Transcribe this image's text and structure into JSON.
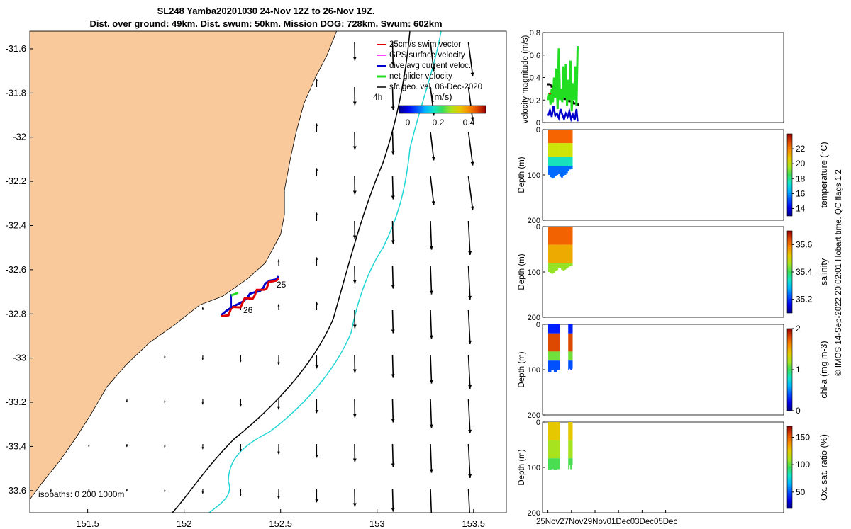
{
  "title": {
    "line1": "SL248 Yamba20201030 24-Nov 12Z to 26-Nov 19Z.",
    "line2": "Dist. over ground: 49km. Dist. swum: 50km. Mission DOG: 728km. Swum: 602km"
  },
  "colors": {
    "land": "#f9c99b",
    "contour_200": "#000000",
    "contour_1000": "#22d6d6",
    "swim_vector": "#e00000",
    "gps_velocity": "#ff00ff",
    "dive_avg": "#0000cc",
    "net_velocity": "#22dd22",
    "geo_vel": "#000000"
  },
  "map": {
    "legend": [
      {
        "key": "swim",
        "label": "25cm/s swim vector"
      },
      {
        "key": "gps",
        "label": "GPS surface velocity"
      },
      {
        "key": "dive",
        "label": "dive avg current veloc."
      },
      {
        "key": "net",
        "label": "net glider velocity"
      },
      {
        "key": "geo",
        "label": "sfc geo. vel. 06-Dec-2020"
      }
    ],
    "scale_label": "4h",
    "colorbar_unit": "(m/s)",
    "colorbar_ticks": [
      "0",
      "0.2",
      "0.4"
    ],
    "colorbar_range": [
      0,
      0.5
    ],
    "isobaths_label": "isobaths: 0   200  1000m",
    "day_labels": [
      {
        "text": "25",
        "lon": 152.48,
        "lat": -32.7
      },
      {
        "text": "26",
        "lon": 152.28,
        "lat": -32.82
      }
    ]
  },
  "chart_data": [
    {
      "type": "scatter",
      "name": "map",
      "x_ticks": [
        151.5,
        152,
        152.5,
        153,
        153.5
      ],
      "x_tick_labels": [
        "151.5",
        "152",
        "152.5",
        "153",
        "153.5"
      ],
      "y_ticks": [
        -31.6,
        -31.8,
        -32,
        -32.2,
        -32.4,
        -32.6,
        -32.8,
        -33,
        -33.2,
        -33.4,
        -33.6
      ],
      "y_tick_labels": [
        "-31.6",
        "-31.8",
        "-32",
        "-32.2",
        "-32.4",
        "-32.6",
        "-32.8",
        "-33",
        "-33.2",
        "-33.4",
        "-33.6"
      ],
      "xlim": [
        151.2,
        153.67
      ],
      "ylim": [
        -33.7,
        -31.52
      ],
      "glider_track": {
        "start": [
          152.49,
          -32.63
        ],
        "end": [
          152.2,
          -32.8
        ]
      },
      "coast": [
        [
          151.2,
          -33.64
        ],
        [
          151.26,
          -33.57
        ],
        [
          151.36,
          -33.46
        ],
        [
          151.44,
          -33.36
        ],
        [
          151.52,
          -33.25
        ],
        [
          151.6,
          -33.13
        ],
        [
          151.7,
          -33.03
        ],
        [
          151.82,
          -32.93
        ],
        [
          151.95,
          -32.85
        ],
        [
          152.08,
          -32.76
        ],
        [
          152.2,
          -32.72
        ],
        [
          152.33,
          -32.64
        ],
        [
          152.42,
          -32.57
        ],
        [
          152.5,
          -32.44
        ],
        [
          152.52,
          -32.35
        ],
        [
          152.52,
          -32.24
        ],
        [
          152.55,
          -32.1
        ],
        [
          152.58,
          -31.98
        ],
        [
          152.62,
          -31.85
        ],
        [
          152.68,
          -31.73
        ],
        [
          152.74,
          -31.63
        ],
        [
          152.79,
          -31.52
        ]
      ]
    },
    {
      "type": "line",
      "name": "velocity",
      "ylabel": "velocity magnitude (m/s)",
      "ylim": [
        0,
        0.8
      ],
      "y_ticks": [
        0,
        0.2,
        0.4,
        0.6,
        0.8
      ],
      "y_tick_labels": [
        "0",
        "0.2",
        "0.4",
        "0.6",
        "0.8"
      ],
      "series": [
        {
          "key": "geo",
          "x": [
            0.0,
            0.1,
            0.2,
            0.3,
            0.4,
            0.5,
            0.6,
            0.7,
            0.8,
            0.9,
            1.0,
            1.1,
            1.2,
            1.3,
            1.4,
            1.5,
            1.6,
            1.7,
            1.8,
            1.9,
            2.0,
            2.1,
            2.2,
            2.3,
            2.4,
            2.5
          ],
          "values": [
            0.34,
            0.34,
            0.33,
            0.32,
            0.31,
            0.29,
            0.28,
            0.26,
            0.25,
            0.24,
            0.23,
            0.23,
            0.22,
            0.22,
            0.21,
            0.21,
            0.2,
            0.2,
            0.19,
            0.19,
            0.18,
            0.18,
            0.17,
            0.17,
            0.17,
            0.16
          ]
        },
        {
          "key": "dive",
          "x": [
            0.0,
            0.15,
            0.3,
            0.45,
            0.6,
            0.75,
            0.9,
            1.05,
            1.2,
            1.35,
            1.5,
            1.65,
            1.8,
            1.95,
            2.1,
            2.25,
            2.4,
            2.5
          ],
          "values": [
            0.06,
            0.11,
            0.05,
            0.15,
            0.06,
            0.08,
            0.04,
            0.12,
            0.07,
            0.03,
            0.08,
            0.05,
            0.1,
            0.03,
            0.07,
            0.02,
            0.12,
            0.01
          ]
        },
        {
          "key": "net",
          "x": [
            0.0,
            0.1,
            0.2,
            0.3,
            0.4,
            0.5,
            0.6,
            0.7,
            0.8,
            0.9,
            1.0,
            1.1,
            1.2,
            1.3,
            1.4,
            1.5,
            1.6,
            1.7,
            1.8,
            1.9,
            2.0,
            2.1,
            2.2,
            2.3,
            2.4,
            2.5
          ],
          "values": [
            0.2,
            0.26,
            0.16,
            0.3,
            0.18,
            0.4,
            0.22,
            0.48,
            0.12,
            0.66,
            0.2,
            0.3,
            0.18,
            0.5,
            0.22,
            0.52,
            0.15,
            0.38,
            0.2,
            0.55,
            0.1,
            0.35,
            0.2,
            0.5,
            0.15,
            0.68
          ]
        },
        {
          "key": "swim",
          "x": [
            0.1,
            0.2
          ],
          "values": [
            0.25,
            0.26
          ]
        }
      ]
    },
    {
      "type": "heatmap",
      "name": "temperature",
      "ylabel": "Depth (m)",
      "ylim": [
        200,
        0
      ],
      "y_ticks": [
        0,
        100,
        200
      ],
      "colorbar_label": "temperature (°C)",
      "range": [
        13,
        24
      ],
      "ticks": [
        14,
        16,
        18,
        20,
        22
      ],
      "tick_labels": [
        "14",
        "16",
        "18",
        "20",
        "22"
      ],
      "depth_max": [
        100,
        105,
        108,
        106,
        102,
        100,
        98,
        104,
        106,
        102,
        100,
        96,
        92,
        88,
        86
      ],
      "layers": [
        {
          "to": 30,
          "value": 22.5
        },
        {
          "to": 60,
          "value": 20
        },
        {
          "to": 80,
          "value": 17.5
        },
        {
          "to": 110,
          "value": 15.5
        }
      ]
    },
    {
      "type": "heatmap",
      "name": "salinity",
      "ylabel": "Depth (m)",
      "ylim": [
        200,
        0
      ],
      "y_ticks": [
        0,
        100,
        200
      ],
      "colorbar_label": "salinity",
      "range": [
        35.1,
        35.7
      ],
      "ticks": [
        35.2,
        35.4,
        35.6
      ],
      "tick_labels": [
        "35.2",
        "35.4",
        "35.6"
      ],
      "depth_max": [
        100,
        103,
        104,
        102,
        98,
        96,
        92,
        92,
        95,
        97,
        95,
        92,
        90,
        88,
        86
      ],
      "layers": [
        {
          "to": 40,
          "value": 35.62
        },
        {
          "to": 80,
          "value": 35.55
        },
        {
          "to": 110,
          "value": 35.45
        }
      ]
    },
    {
      "type": "heatmap",
      "name": "chl-a",
      "ylabel": "Depth (m)",
      "ylim": [
        200,
        0
      ],
      "y_ticks": [
        0,
        100,
        200
      ],
      "colorbar_label": "chl-a (mg m-3)",
      "range": [
        0,
        2
      ],
      "ticks": [
        0,
        1,
        2
      ],
      "tick_labels": [
        "0",
        "1",
        "2"
      ],
      "segments": [
        {
          "x0": 0.0,
          "x1": 0.95
        },
        {
          "x0": 1.7,
          "x1": 2.05
        }
      ],
      "depth_max": [
        105,
        100,
        98
      ],
      "layers": [
        {
          "to": 20,
          "value": 0.3
        },
        {
          "to": 60,
          "value": 1.8
        },
        {
          "to": 80,
          "value": 1.1
        },
        {
          "to": 110,
          "value": 0.4
        }
      ]
    },
    {
      "type": "heatmap",
      "name": "oxygen",
      "ylabel": "Depth (m)",
      "ylim": [
        200,
        0
      ],
      "y_ticks": [
        0,
        100,
        200
      ],
      "colorbar_label": "Ox. sat. ratio (%)",
      "range": [
        20,
        170
      ],
      "ticks": [
        50,
        100,
        150
      ],
      "tick_labels": [
        "50",
        "100",
        "150"
      ],
      "segments": [
        {
          "x0": 0.0,
          "x1": 0.95
        },
        {
          "x0": 1.7,
          "x1": 2.05
        }
      ],
      "depth_max": [
        106,
        104,
        95
      ],
      "layers": [
        {
          "to": 40,
          "value": 125
        },
        {
          "to": 80,
          "value": 110
        },
        {
          "to": 110,
          "value": 97
        }
      ]
    },
    {
      "type": "axis",
      "name": "time_axis",
      "x_tick_labels": [
        "25Nov",
        "27Nov",
        "29Nov",
        "01Dec",
        "03Dec",
        "05Dec"
      ]
    }
  ],
  "credit": "© IMOS 14-Sep-2022 20:02:01 Hobart time. QC flags 1  2"
}
